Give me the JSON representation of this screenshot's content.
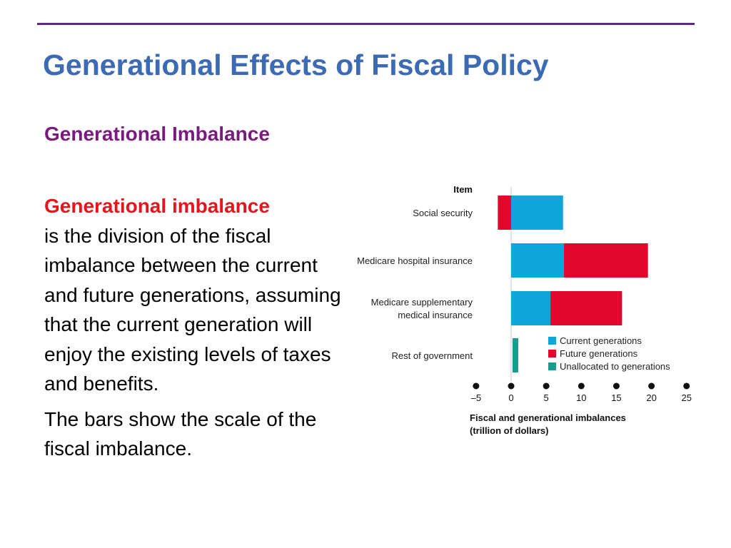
{
  "slide": {
    "title": "Generational Effects of Fiscal Policy",
    "subtitle": "Generational Imbalance",
    "definition_term": "Generational imbalance",
    "definition_text": "is the division of the fiscal imbalance between the current and future generations, assuming that the current generation will enjoy the existing levels of taxes and benefits.",
    "note": "The bars show the scale of the fiscal imbalance."
  },
  "chart_data": {
    "type": "bar",
    "orientation": "horizontal",
    "stacked": true,
    "category_axis_title": "Item",
    "categories": [
      [
        "Social security"
      ],
      [
        "Medicare hospital insurance"
      ],
      [
        "Medicare supplementary",
        "medical insurance"
      ],
      [
        "Rest of government"
      ]
    ],
    "series": [
      {
        "name": "Current generations",
        "color": "#10a6dc",
        "values": [
          7.4,
          7.5,
          5.6,
          0
        ]
      },
      {
        "name": "Future generations",
        "color": "#e0092d",
        "values": [
          -1.9,
          12.0,
          10.2,
          0
        ]
      },
      {
        "name": "Unallocated to generations",
        "color": "#1a9b8e",
        "values": [
          0,
          0,
          0,
          1.1
        ]
      }
    ],
    "xlim": [
      -5,
      25
    ],
    "xticks": [
      "–5",
      "0",
      "5",
      "10",
      "15",
      "20",
      "25"
    ],
    "xtick_values": [
      -5,
      0,
      5,
      10,
      15,
      20,
      25
    ],
    "xlabel": [
      "Fiscal and generational imbalances",
      "(trillion of dollars)"
    ],
    "legend_position": "bottom-right"
  }
}
